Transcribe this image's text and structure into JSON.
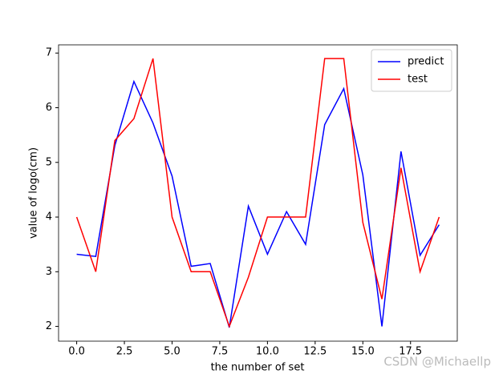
{
  "chart_data": {
    "type": "line",
    "x_label": "the number of set",
    "y_label": "value of logo(cm)",
    "x": [
      0,
      1,
      2,
      3,
      4,
      5,
      6,
      7,
      8,
      9,
      10,
      11,
      12,
      13,
      14,
      15,
      16,
      17,
      18,
      19
    ],
    "series": [
      {
        "name": "predict",
        "color": "#0000ff",
        "values": [
          3.32,
          3.28,
          5.31,
          6.48,
          5.72,
          4.75,
          3.1,
          3.15,
          1.98,
          4.2,
          3.32,
          4.1,
          3.5,
          5.69,
          6.35,
          4.77,
          2.0,
          5.2,
          3.3,
          3.86
        ]
      },
      {
        "name": "test",
        "color": "#ff0000",
        "values": [
          4,
          3,
          5.4,
          5.8,
          6.9,
          4,
          3,
          3,
          2,
          2.9,
          4,
          4,
          4,
          6.9,
          6.9,
          3.9,
          2.5,
          4.9,
          3,
          4
        ]
      }
    ],
    "xlim": [
      -0.95,
      19.95
    ],
    "ylim": [
      1.73,
      7.15
    ],
    "xticks": [
      {
        "value": 0,
        "label": "0.0"
      },
      {
        "value": 2.5,
        "label": "2.5"
      },
      {
        "value": 5,
        "label": "5.0"
      },
      {
        "value": 7.5,
        "label": "7.5"
      },
      {
        "value": 10,
        "label": "10.0"
      },
      {
        "value": 12.5,
        "label": "12.5"
      },
      {
        "value": 15,
        "label": "15.0"
      },
      {
        "value": 17.5,
        "label": "17.5"
      }
    ],
    "yticks": [
      2,
      3,
      4,
      5,
      6,
      7
    ],
    "legend": "upper-right",
    "watermark": "CSDN @Michaellp"
  }
}
